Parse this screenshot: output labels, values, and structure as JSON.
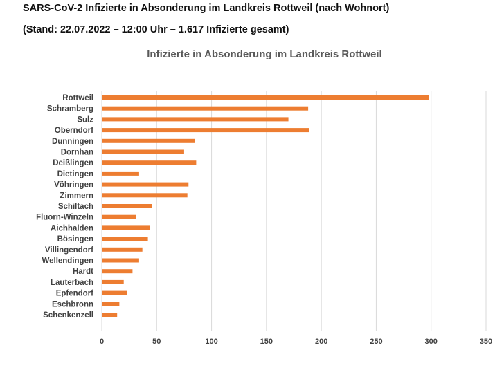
{
  "document": {
    "title": "SARS-CoV-2 Infizierte in Absonderung im Landkreis Rottweil (nach Wohnort)",
    "subtitle": "(Stand: 22.07.2022 – 12:00 Uhr – 1.617 Infizierte gesamt)"
  },
  "colors": {
    "bar": "#ED7D31",
    "grid": "#D9D9D9"
  },
  "chart_data": {
    "type": "bar",
    "orientation": "horizontal",
    "title": "Infizierte in Absonderung im Landkreis Rottweil",
    "categories": [
      "Rottweil",
      "Schramberg",
      "Sulz",
      "Oberndorf",
      "Dunningen",
      "Dornhan",
      "Deißlingen",
      "Dietingen",
      "Vöhringen",
      "Zimmern",
      "Schiltach",
      "Fluorn-Winzeln",
      "Aichhalden",
      "Bösingen",
      "Villingendorf",
      "Wellendingen",
      "Hardt",
      "Lauterbach",
      "Epfendorf",
      "Eschbronn",
      "Schenkenzell"
    ],
    "values": [
      298,
      188,
      170,
      189,
      85,
      75,
      86,
      34,
      79,
      78,
      46,
      31,
      44,
      42,
      37,
      34,
      28,
      20,
      23,
      16,
      14
    ],
    "xlim": [
      0,
      350
    ],
    "xticks": [
      0,
      50,
      100,
      150,
      200,
      250,
      300,
      350
    ],
    "grid": true,
    "legend": "none"
  }
}
